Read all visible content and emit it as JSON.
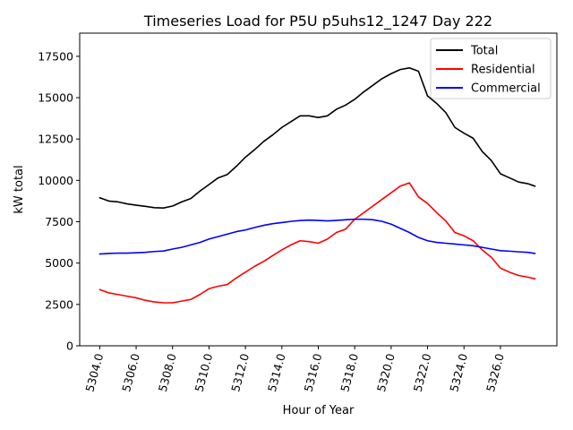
{
  "chart_data": {
    "type": "line",
    "title": "Timeseries Load for P5U p5uhs12_1247  Day 222",
    "xlabel": "Hour of Year",
    "ylabel": "kW total",
    "xlim": [
      5302.9,
      5329.1
    ],
    "ylim": [
      0,
      18900
    ],
    "x_ticks": [
      5304,
      5306,
      5308,
      5310,
      5312,
      5314,
      5316,
      5318,
      5320,
      5322,
      5324,
      5326
    ],
    "x_tick_labels": [
      "5304.0",
      "5306.0",
      "5308.0",
      "5310.0",
      "5312.0",
      "5314.0",
      "5316.0",
      "5318.0",
      "5320.0",
      "5322.0",
      "5324.0",
      "5326.0"
    ],
    "y_ticks": [
      0,
      2500,
      5000,
      7500,
      10000,
      12500,
      15000,
      17500
    ],
    "y_tick_labels": [
      "0",
      "2500",
      "5000",
      "7500",
      "10000",
      "12500",
      "15000",
      "17500"
    ],
    "legend_position": "top-right",
    "series": [
      {
        "name": "Total",
        "color": "#000000",
        "points": [
          [
            5304.0,
            8950
          ],
          [
            5304.5,
            8750
          ],
          [
            5305.0,
            8700
          ],
          [
            5305.5,
            8580
          ],
          [
            5306.0,
            8500
          ],
          [
            5306.5,
            8430
          ],
          [
            5307.0,
            8350
          ],
          [
            5307.5,
            8330
          ],
          [
            5308.0,
            8450
          ],
          [
            5308.5,
            8700
          ],
          [
            5309.0,
            8900
          ],
          [
            5309.5,
            9350
          ],
          [
            5310.0,
            9750
          ],
          [
            5310.5,
            10150
          ],
          [
            5311.0,
            10350
          ],
          [
            5311.5,
            10850
          ],
          [
            5312.0,
            11400
          ],
          [
            5312.5,
            11850
          ],
          [
            5313.0,
            12350
          ],
          [
            5313.5,
            12750
          ],
          [
            5314.0,
            13200
          ],
          [
            5314.5,
            13550
          ],
          [
            5315.0,
            13900
          ],
          [
            5315.5,
            13900
          ],
          [
            5316.0,
            13800
          ],
          [
            5316.5,
            13900
          ],
          [
            5317.0,
            14300
          ],
          [
            5317.5,
            14550
          ],
          [
            5318.0,
            14900
          ],
          [
            5318.5,
            15350
          ],
          [
            5319.0,
            15750
          ],
          [
            5319.5,
            16150
          ],
          [
            5320.0,
            16450
          ],
          [
            5320.5,
            16700
          ],
          [
            5321.0,
            16800
          ],
          [
            5321.5,
            16600
          ],
          [
            5322.0,
            15100
          ],
          [
            5322.5,
            14650
          ],
          [
            5323.0,
            14100
          ],
          [
            5323.5,
            13200
          ],
          [
            5324.0,
            12850
          ],
          [
            5324.5,
            12550
          ],
          [
            5325.0,
            11750
          ],
          [
            5325.5,
            11200
          ],
          [
            5326.0,
            10400
          ],
          [
            5326.5,
            10150
          ],
          [
            5327.0,
            9900
          ],
          [
            5327.5,
            9800
          ],
          [
            5327.9,
            9650
          ]
        ]
      },
      {
        "name": "Residential",
        "color": "#ff0000",
        "points": [
          [
            5304.0,
            3400
          ],
          [
            5304.5,
            3200
          ],
          [
            5305.0,
            3100
          ],
          [
            5305.5,
            3000
          ],
          [
            5306.0,
            2900
          ],
          [
            5306.5,
            2750
          ],
          [
            5307.0,
            2650
          ],
          [
            5307.5,
            2600
          ],
          [
            5308.0,
            2600
          ],
          [
            5308.5,
            2700
          ],
          [
            5309.0,
            2800
          ],
          [
            5309.5,
            3100
          ],
          [
            5310.0,
            3450
          ],
          [
            5310.5,
            3600
          ],
          [
            5311.0,
            3700
          ],
          [
            5311.5,
            4100
          ],
          [
            5312.0,
            4450
          ],
          [
            5312.5,
            4800
          ],
          [
            5313.0,
            5100
          ],
          [
            5313.5,
            5450
          ],
          [
            5314.0,
            5800
          ],
          [
            5314.5,
            6100
          ],
          [
            5315.0,
            6350
          ],
          [
            5315.5,
            6300
          ],
          [
            5316.0,
            6200
          ],
          [
            5316.5,
            6450
          ],
          [
            5317.0,
            6850
          ],
          [
            5317.5,
            7050
          ],
          [
            5318.0,
            7650
          ],
          [
            5318.5,
            8050
          ],
          [
            5319.0,
            8450
          ],
          [
            5319.5,
            8850
          ],
          [
            5320.0,
            9250
          ],
          [
            5320.5,
            9650
          ],
          [
            5321.0,
            9850
          ],
          [
            5321.5,
            9000
          ],
          [
            5322.0,
            8600
          ],
          [
            5322.5,
            8050
          ],
          [
            5323.0,
            7550
          ],
          [
            5323.5,
            6850
          ],
          [
            5324.0,
            6650
          ],
          [
            5324.5,
            6350
          ],
          [
            5325.0,
            5800
          ],
          [
            5325.5,
            5350
          ],
          [
            5326.0,
            4700
          ],
          [
            5326.5,
            4450
          ],
          [
            5327.0,
            4250
          ],
          [
            5327.5,
            4150
          ],
          [
            5327.9,
            4050
          ]
        ]
      },
      {
        "name": "Commercial",
        "color": "#0000ff",
        "points": [
          [
            5304.0,
            5550
          ],
          [
            5304.5,
            5580
          ],
          [
            5305.0,
            5600
          ],
          [
            5305.5,
            5600
          ],
          [
            5306.0,
            5620
          ],
          [
            5306.5,
            5650
          ],
          [
            5307.0,
            5700
          ],
          [
            5307.5,
            5730
          ],
          [
            5308.0,
            5850
          ],
          [
            5308.5,
            5950
          ],
          [
            5309.0,
            6100
          ],
          [
            5309.5,
            6250
          ],
          [
            5310.0,
            6450
          ],
          [
            5310.5,
            6600
          ],
          [
            5311.0,
            6750
          ],
          [
            5311.5,
            6900
          ],
          [
            5312.0,
            7000
          ],
          [
            5312.5,
            7150
          ],
          [
            5313.0,
            7280
          ],
          [
            5313.5,
            7380
          ],
          [
            5314.0,
            7450
          ],
          [
            5314.5,
            7520
          ],
          [
            5315.0,
            7570
          ],
          [
            5315.5,
            7600
          ],
          [
            5316.0,
            7580
          ],
          [
            5316.5,
            7550
          ],
          [
            5317.0,
            7580
          ],
          [
            5317.5,
            7620
          ],
          [
            5318.0,
            7650
          ],
          [
            5318.5,
            7650
          ],
          [
            5319.0,
            7620
          ],
          [
            5319.5,
            7520
          ],
          [
            5320.0,
            7350
          ],
          [
            5320.5,
            7100
          ],
          [
            5321.0,
            6850
          ],
          [
            5321.5,
            6550
          ],
          [
            5322.0,
            6350
          ],
          [
            5322.5,
            6250
          ],
          [
            5323.0,
            6200
          ],
          [
            5323.5,
            6150
          ],
          [
            5324.0,
            6100
          ],
          [
            5324.5,
            6050
          ],
          [
            5325.0,
            5950
          ],
          [
            5325.5,
            5850
          ],
          [
            5326.0,
            5750
          ],
          [
            5326.5,
            5720
          ],
          [
            5327.0,
            5680
          ],
          [
            5327.5,
            5650
          ],
          [
            5327.9,
            5580
          ]
        ]
      }
    ]
  }
}
